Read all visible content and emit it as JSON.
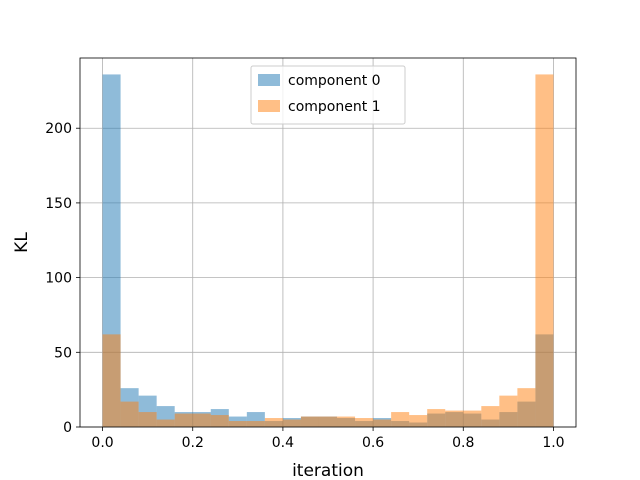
{
  "chart_data": {
    "type": "bar",
    "title": "",
    "xlabel": "iteration",
    "ylabel": "KL",
    "xlim": [
      -0.05,
      1.05
    ],
    "ylim": [
      0,
      247
    ],
    "xticks": [
      0.0,
      0.2,
      0.4,
      0.6,
      0.8,
      1.0
    ],
    "xtick_labels": [
      "0.0",
      "0.2",
      "0.4",
      "0.6",
      "0.8",
      "1.0"
    ],
    "yticks": [
      0,
      50,
      100,
      150,
      200
    ],
    "ytick_labels": [
      "0",
      "50",
      "100",
      "150",
      "200"
    ],
    "grid": true,
    "legend_position": "top-center",
    "bin_edges": [
      0.0,
      0.04,
      0.08,
      0.12,
      0.16,
      0.2,
      0.24,
      0.28,
      0.32,
      0.36,
      0.4,
      0.44,
      0.48,
      0.52,
      0.56,
      0.6,
      0.64,
      0.68,
      0.72,
      0.76,
      0.8,
      0.84,
      0.88,
      0.92,
      0.96,
      1.0
    ],
    "series": [
      {
        "name": "component 0",
        "color": "#1f77b4",
        "alpha": 0.5,
        "values": [
          236,
          26,
          21,
          14,
          10,
          10,
          12,
          7,
          10,
          4,
          6,
          7,
          7,
          6,
          4,
          6,
          4,
          3,
          9,
          10,
          9,
          5,
          10,
          17,
          62
        ]
      },
      {
        "name": "component 1",
        "color": "#ff7f0e",
        "alpha": 0.5,
        "values": [
          62,
          17,
          10,
          5,
          9,
          9,
          8,
          4,
          4,
          6,
          5,
          7,
          7,
          7,
          6,
          5,
          10,
          8,
          12,
          11,
          11,
          14,
          21,
          26,
          236
        ]
      }
    ]
  }
}
